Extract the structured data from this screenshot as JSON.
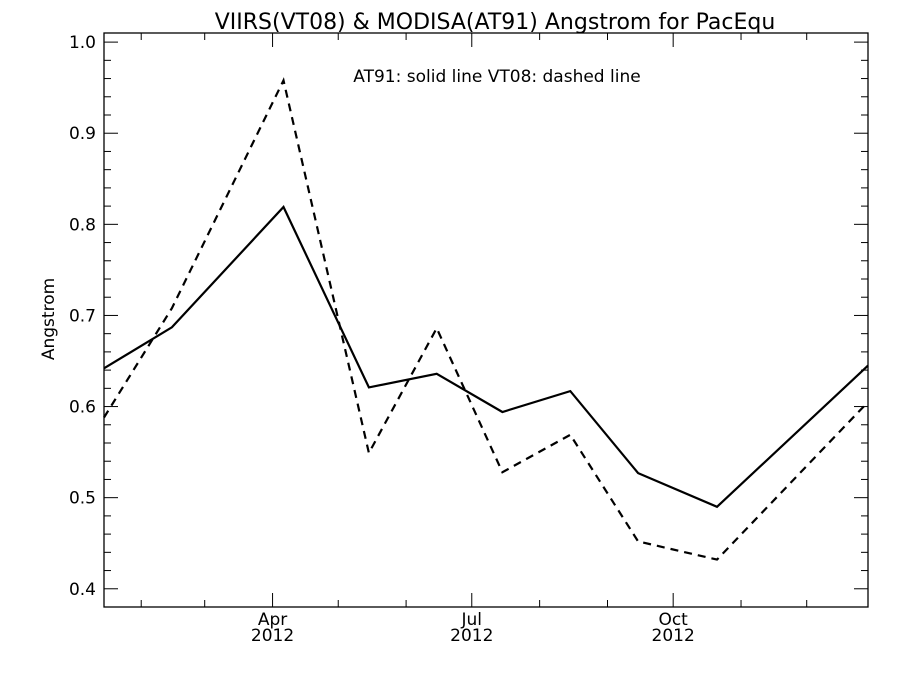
{
  "chart_data": {
    "type": "line",
    "title": "VIIRS(VT08) & MODISA(AT91)  Angstrom for PacEqu",
    "annotation": "AT91: solid line   VT08: dashed line",
    "ylabel": "Angstrom",
    "xlabel": "",
    "ylim": [
      0.38,
      1.01
    ],
    "xlim": [
      "2012-01-15",
      "2012-12-29"
    ],
    "y_ticks": [
      0.4,
      0.5,
      0.6,
      0.7,
      0.8,
      0.9,
      1.0
    ],
    "y_tick_labels": [
      "0.4",
      "0.5",
      "0.6",
      "0.7",
      "0.8",
      "0.9",
      "1.0"
    ],
    "x_major_ticks": [
      {
        "date": "2012-04-01",
        "label": "Apr",
        "year": "2012"
      },
      {
        "date": "2012-07-01",
        "label": "Jul",
        "year": "2012"
      },
      {
        "date": "2012-10-01",
        "label": "Oct",
        "year": "2012"
      }
    ],
    "x_minor_ticks": [
      "2012-02-01",
      "2012-03-01",
      "2012-05-01",
      "2012-06-01",
      "2012-08-01",
      "2012-09-01",
      "2012-11-01",
      "2012-12-01"
    ],
    "grid": false,
    "series": [
      {
        "name": "AT91",
        "style": "solid",
        "color": "#000000",
        "x": [
          "2012-01-15",
          "2012-02-15",
          "2012-04-06",
          "2012-05-15",
          "2012-06-15",
          "2012-07-15",
          "2012-08-15",
          "2012-09-15",
          "2012-10-21",
          "2012-12-29"
        ],
        "y": [
          0.642,
          0.687,
          0.819,
          0.621,
          0.636,
          0.594,
          0.617,
          0.527,
          0.49,
          0.645
        ]
      },
      {
        "name": "VT08",
        "style": "dashed",
        "color": "#000000",
        "x": [
          "2012-01-15",
          "2012-02-15",
          "2012-04-06",
          "2012-05-15",
          "2012-06-15",
          "2012-07-15",
          "2012-08-15",
          "2012-09-15",
          "2012-10-21",
          "2012-12-29"
        ],
        "y": [
          0.588,
          0.708,
          0.958,
          0.549,
          0.686,
          0.528,
          0.569,
          0.452,
          0.432,
          0.605
        ]
      }
    ]
  }
}
